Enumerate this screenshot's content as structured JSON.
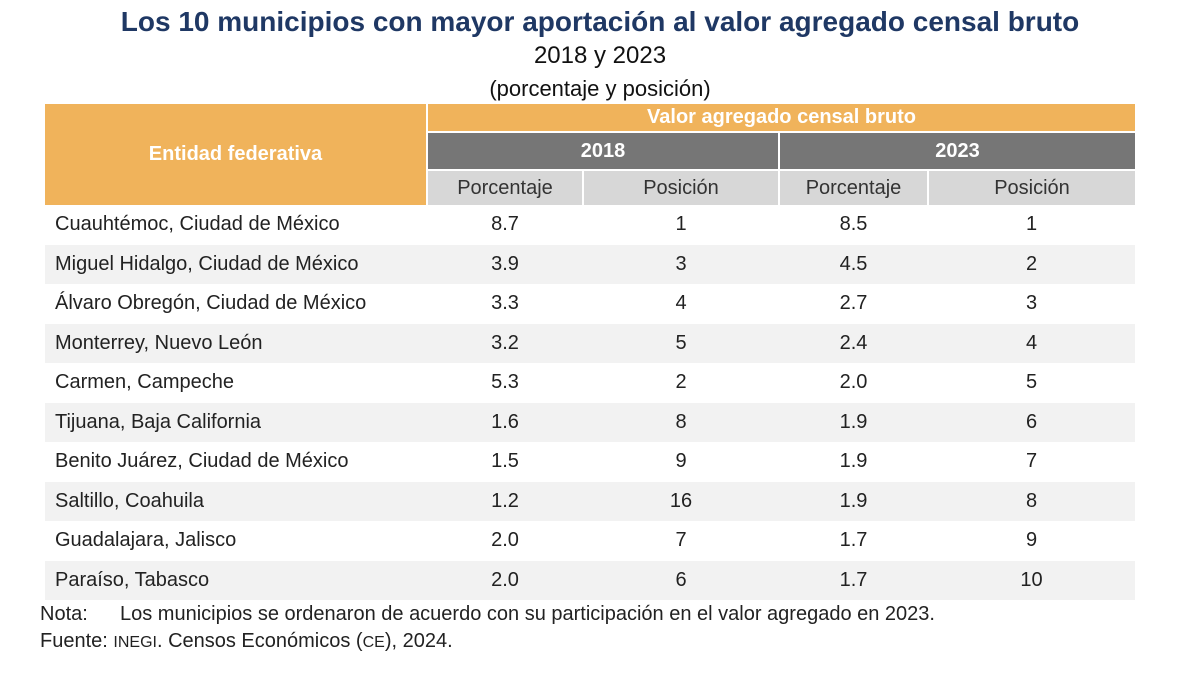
{
  "title": "Los 10 municipios con mayor aportación al valor agregado censal bruto",
  "subtitle": "2018 y 2023",
  "units": "(porcentaje y posición)",
  "table": {
    "entity_header": "Entidad federativa",
    "group_header": "Valor agregado censal bruto",
    "years": [
      "2018",
      "2023"
    ],
    "sub_headers": [
      "Porcentaje",
      "Posición",
      "Porcentaje",
      "Posición"
    ],
    "header_color": "#f0b35b",
    "year_header_color": "#767676",
    "sub_header_color": "#d7d7d7",
    "rows": [
      {
        "entity": "Cuauhtémoc, Ciudad de México",
        "pct_2018": "8.7",
        "pos_2018": "1",
        "pct_2023": "8.5",
        "pos_2023": "1"
      },
      {
        "entity": "Miguel Hidalgo, Ciudad de México",
        "pct_2018": "3.9",
        "pos_2018": "3",
        "pct_2023": "4.5",
        "pos_2023": "2"
      },
      {
        "entity": "Álvaro Obregón, Ciudad de México",
        "pct_2018": "3.3",
        "pos_2018": "4",
        "pct_2023": "2.7",
        "pos_2023": "3"
      },
      {
        "entity": "Monterrey, Nuevo León",
        "pct_2018": "3.2",
        "pos_2018": "5",
        "pct_2023": "2.4",
        "pos_2023": "4"
      },
      {
        "entity": "Carmen, Campeche",
        "pct_2018": "5.3",
        "pos_2018": "2",
        "pct_2023": "2.0",
        "pos_2023": "5"
      },
      {
        "entity": "Tijuana, Baja California",
        "pct_2018": "1.6",
        "pos_2018": "8",
        "pct_2023": "1.9",
        "pos_2023": "6"
      },
      {
        "entity": "Benito Juárez, Ciudad de México",
        "pct_2018": "1.5",
        "pos_2018": "9",
        "pct_2023": "1.9",
        "pos_2023": "7"
      },
      {
        "entity": "Saltillo, Coahuila",
        "pct_2018": "1.2",
        "pos_2018": "16",
        "pct_2023": "1.9",
        "pos_2023": "8"
      },
      {
        "entity": "Guadalajara, Jalisco",
        "pct_2018": "2.0",
        "pos_2018": "7",
        "pct_2023": "1.7",
        "pos_2023": "9"
      },
      {
        "entity": "Paraíso, Tabasco",
        "pct_2018": "2.0",
        "pos_2018": "6",
        "pct_2023": "1.7",
        "pos_2023": "10"
      }
    ]
  },
  "note": {
    "label": "Nota:",
    "text": "Los municipios se ordenaron de acuerdo con su participación en el valor agregado en 2023."
  },
  "source": {
    "label": "Fuente:",
    "org": "INEGI",
    "text_a": ". Censos Económicos (",
    "abbr": "CE",
    "text_b": "), 2024."
  }
}
